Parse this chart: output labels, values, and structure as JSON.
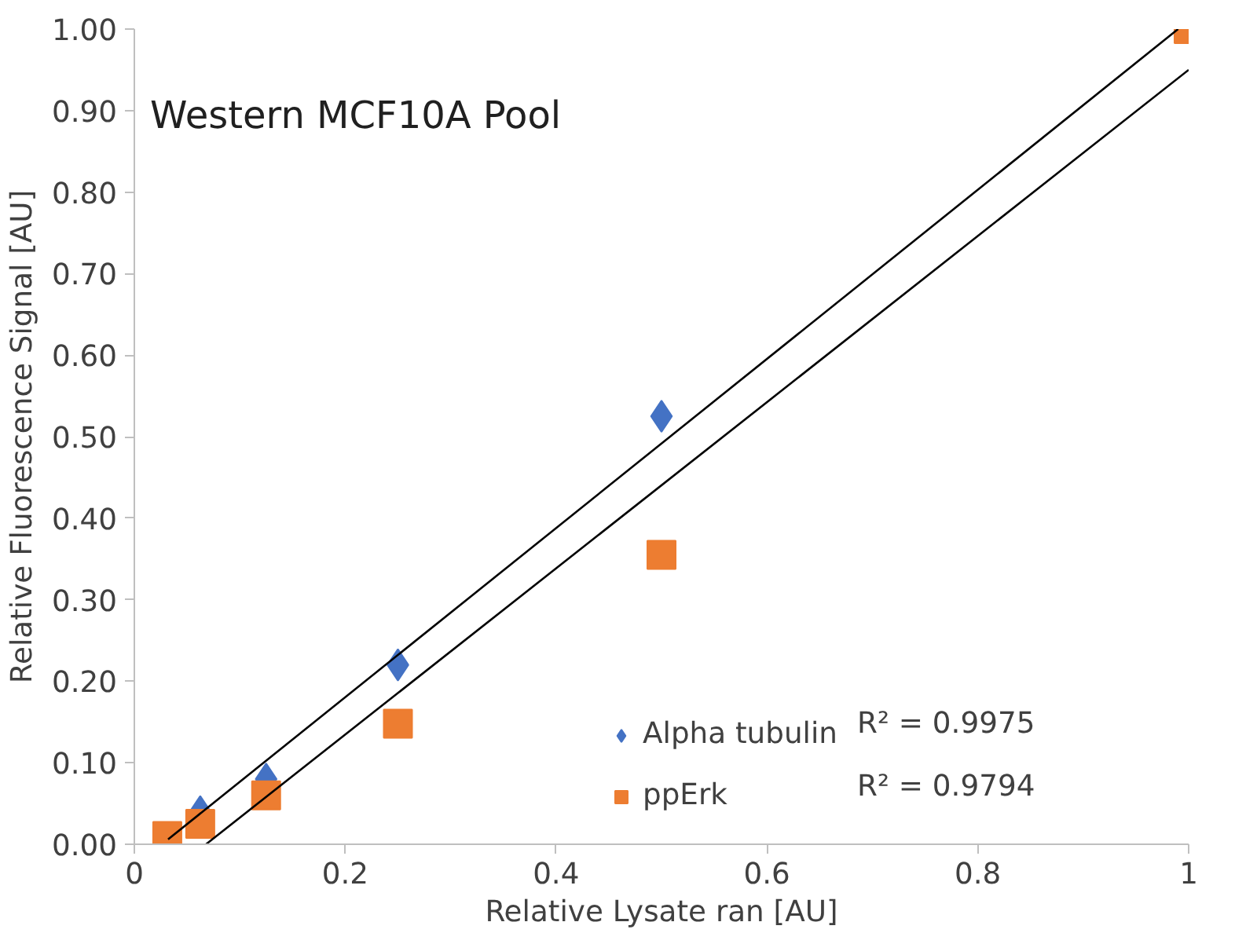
{
  "chart_data": {
    "type": "scatter",
    "title": "Western MCF10A Pool",
    "xlabel": "Relative Lysate ran [AU]",
    "ylabel": "Relative Fluorescence Signal [AU]",
    "x": [
      0.03125,
      0.0625,
      0.125,
      0.25,
      0.5,
      1
    ],
    "series": [
      {
        "name": "Alpha tubulin",
        "color": "#4472c4",
        "marker": "diamond",
        "values": [
          null,
          0.04,
          0.08,
          0.22,
          0.525,
          null
        ]
      },
      {
        "name": "ppErk",
        "color": "#ed7d31",
        "marker": "square",
        "values": [
          0.01,
          0.025,
          0.06,
          0.148,
          0.355,
          1.0
        ]
      },
      {
        "type": "line",
        "color": "#000000",
        "x": [
          0.032,
          0.99
        ],
        "values": [
          0.006,
          1.0
        ]
      },
      {
        "type": "line",
        "color": "#000000",
        "x": [
          0.068,
          1
        ],
        "values": [
          0.0,
          0.95
        ]
      }
    ],
    "annotations": [
      "R² = 0.9975",
      "R² = 0.9794"
    ],
    "xlim": [
      0,
      1
    ],
    "xticks": [
      0,
      {
        "value": 0.2,
        "label": "0.2"
      },
      {
        "value": 0.4,
        "label": "0.4"
      },
      {
        "value": 0.6,
        "label": "0.6"
      },
      {
        "value": 0.8,
        "label": "0.8"
      },
      1
    ],
    "ylim": [
      0,
      1
    ],
    "yticks": [
      {
        "value": 0,
        "label": "0.00"
      },
      {
        "value": 0.1,
        "label": "0.10"
      },
      {
        "value": 0.2,
        "label": "0.20"
      },
      {
        "value": 0.3,
        "label": "0.30"
      },
      {
        "value": 0.4,
        "label": "0.40"
      },
      {
        "value": 0.5,
        "label": "0.50"
      },
      {
        "value": 0.6,
        "label": "0.60"
      },
      {
        "value": 0.7,
        "label": "0.70"
      },
      {
        "value": 0.8,
        "label": "0.80"
      },
      {
        "value": 0.9,
        "label": "0.90"
      },
      {
        "value": 1,
        "label": "1.00"
      }
    ],
    "grid": false,
    "legend": "bottom right"
  }
}
